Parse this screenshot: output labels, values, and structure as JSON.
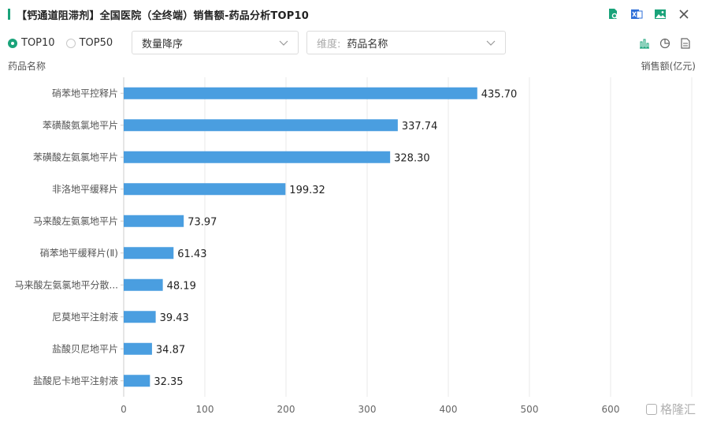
{
  "header": {
    "title": "【钙通道阻滞剂】全国医院（全终端）销售额-药品分析TOP10"
  },
  "header_icons": [
    "search-doc-icon",
    "excel-icon",
    "image-icon",
    "close-icon"
  ],
  "filters": {
    "radio_top10": "TOP10",
    "radio_top50": "TOP50",
    "sort_select": "数量降序",
    "dimension_label": "维度:",
    "dimension_value": "药品名称"
  },
  "view_icons": [
    "bar-chart-icon",
    "pie-chart-icon",
    "table-icon"
  ],
  "watermark": "格隆汇",
  "colors": {
    "accent": "#1aa37a",
    "bar": "#4a9ee0"
  },
  "chart_data": {
    "type": "bar",
    "orientation": "horizontal",
    "xlabel": "销售额(亿元)",
    "ylabel": "药品名称",
    "xlim": [
      0,
      700
    ],
    "xticks": [
      0,
      100,
      200,
      300,
      400,
      500,
      600
    ],
    "grid": true,
    "categories": [
      "硝苯地平控释片",
      "苯磺酸氨氯地平片",
      "苯磺酸左氨氯地平片",
      "非洛地平缓释片",
      "马来酸左氨氯地平片",
      "硝苯地平缓释片(Ⅱ)",
      "马来酸左氨氯地平分散...",
      "尼莫地平注射液",
      "盐酸贝尼地平片",
      "盐酸尼卡地平注射液"
    ],
    "values": [
      435.7,
      337.74,
      328.3,
      199.32,
      73.97,
      61.43,
      48.19,
      39.43,
      34.87,
      32.35
    ],
    "labels": [
      "435.70",
      "337.74",
      "328.30",
      "199.32",
      "73.97",
      "61.43",
      "48.19",
      "39.43",
      "34.87",
      "32.35"
    ]
  }
}
